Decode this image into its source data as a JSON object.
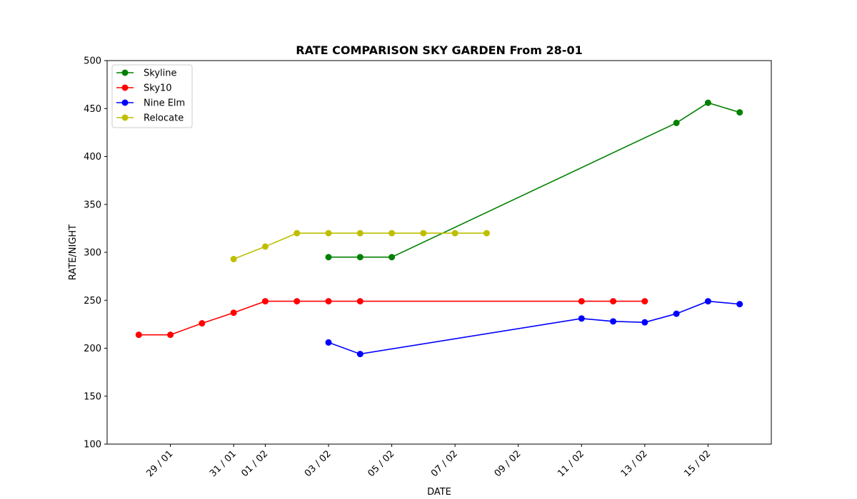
{
  "chart_data": {
    "type": "line",
    "title": "RATE COMPARISON SKY GARDEN From 28-01",
    "xlabel": "DATE",
    "ylabel": "RATE/NIGHT",
    "ylim": [
      100,
      500
    ],
    "yticks": [
      100,
      150,
      200,
      250,
      300,
      350,
      400,
      450,
      500
    ],
    "xlim": [
      "2024-01-27",
      "2024-02-17"
    ],
    "xticks": [
      {
        "date": "2024-01-29",
        "label": "29 / 01"
      },
      {
        "date": "2024-01-31",
        "label": "31 / 01"
      },
      {
        "date": "2024-02-01",
        "label": "01 / 02"
      },
      {
        "date": "2024-02-03",
        "label": "03 / 02"
      },
      {
        "date": "2024-02-05",
        "label": "05 / 02"
      },
      {
        "date": "2024-02-07",
        "label": "07 / 02"
      },
      {
        "date": "2024-02-09",
        "label": "09 / 02"
      },
      {
        "date": "2024-02-11",
        "label": "11 / 02"
      },
      {
        "date": "2024-02-13",
        "label": "13 / 02"
      },
      {
        "date": "2024-02-15",
        "label": "15 / 02"
      }
    ],
    "grid": false,
    "legend_position": "top-left",
    "series": [
      {
        "name": "Skyline",
        "color": "#008000",
        "points": [
          {
            "x": "2024-02-03",
            "y": 295
          },
          {
            "x": "2024-02-04",
            "y": 295
          },
          {
            "x": "2024-02-05",
            "y": 295
          },
          {
            "x": "2024-02-14",
            "y": 435
          },
          {
            "x": "2024-02-15",
            "y": 456
          },
          {
            "x": "2024-02-16",
            "y": 446
          }
        ]
      },
      {
        "name": "Sky10",
        "color": "#ff0000",
        "points": [
          {
            "x": "2024-01-28",
            "y": 214
          },
          {
            "x": "2024-01-29",
            "y": 214
          },
          {
            "x": "2024-01-30",
            "y": 226
          },
          {
            "x": "2024-01-31",
            "y": 237
          },
          {
            "x": "2024-02-01",
            "y": 249
          },
          {
            "x": "2024-02-02",
            "y": 249
          },
          {
            "x": "2024-02-03",
            "y": 249
          },
          {
            "x": "2024-02-04",
            "y": 249
          },
          {
            "x": "2024-02-11",
            "y": 249
          },
          {
            "x": "2024-02-12",
            "y": 249
          },
          {
            "x": "2024-02-13",
            "y": 249
          }
        ]
      },
      {
        "name": "Nine Elm",
        "color": "#0000ff",
        "points": [
          {
            "x": "2024-02-03",
            "y": 206
          },
          {
            "x": "2024-02-04",
            "y": 194
          },
          {
            "x": "2024-02-11",
            "y": 231
          },
          {
            "x": "2024-02-12",
            "y": 228
          },
          {
            "x": "2024-02-13",
            "y": 227
          },
          {
            "x": "2024-02-14",
            "y": 236
          },
          {
            "x": "2024-02-15",
            "y": 249
          },
          {
            "x": "2024-02-16",
            "y": 246
          }
        ]
      },
      {
        "name": "Relocate",
        "color": "#bfbf00",
        "points": [
          {
            "x": "2024-01-31",
            "y": 293
          },
          {
            "x": "2024-02-01",
            "y": 306
          },
          {
            "x": "2024-02-02",
            "y": 320
          },
          {
            "x": "2024-02-03",
            "y": 320
          },
          {
            "x": "2024-02-04",
            "y": 320
          },
          {
            "x": "2024-02-05",
            "y": 320
          },
          {
            "x": "2024-02-06",
            "y": 320
          },
          {
            "x": "2024-02-07",
            "y": 320
          },
          {
            "x": "2024-02-08",
            "y": 320
          }
        ]
      }
    ]
  }
}
